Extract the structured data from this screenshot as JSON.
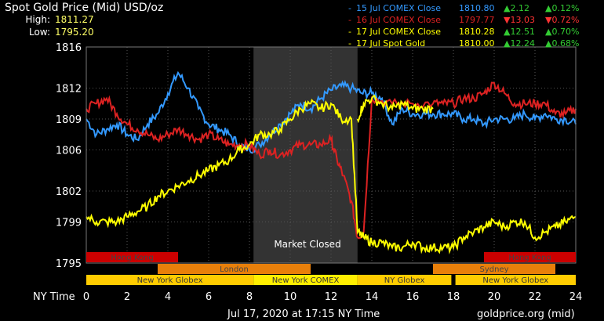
{
  "title": "Spot Gold Price (Mid) USD/oz",
  "stats": [
    {
      "label": "High:",
      "value": "1811.27"
    },
    {
      "label": "Low:",
      "value": "1795.20"
    }
  ],
  "legend": [
    {
      "label": "15 Jul COMEX Close",
      "price": "1810.80",
      "arrow": "▲",
      "change": "2.12",
      "pct_arrow": "▲",
      "pct": "0.12%",
      "color": "#3399ff",
      "change_color": "#33cc33"
    },
    {
      "label": "16 Jul COMEX Close",
      "price": "1797.77",
      "arrow": "▼",
      "change": "13.03",
      "pct_arrow": "▼",
      "pct": "0.72%",
      "color": "#dd2222",
      "change_color": "#ff3333"
    },
    {
      "label": "17 Jul COMEX Close",
      "price": "1810.28",
      "arrow": "▲",
      "change": "12.51",
      "pct_arrow": "▲",
      "pct": "0.70%",
      "color": "#ffff00",
      "change_color": "#33cc33"
    },
    {
      "label": "17 Jul Spot Gold",
      "price": "1810.00",
      "arrow": "▲",
      "change": "12.24",
      "pct_arrow": "▲",
      "pct": "0.68%",
      "color": "#ffff00",
      "change_color": "#33cc33"
    }
  ],
  "x_axis_label": "NY Time",
  "footer": {
    "timestamp": "Jul 17, 2020 at 17:15 NY Time",
    "source": "goldprice.org (mid)"
  },
  "market_closed_label": "Market Closed",
  "sessions": [
    {
      "label": "Hong Kong",
      "start": 0,
      "end": 4.5,
      "row": 0,
      "color": "#cc0000"
    },
    {
      "label": "Hong Kong",
      "start": 19.5,
      "end": 24,
      "row": 0,
      "color": "#cc0000"
    },
    {
      "label": "London",
      "start": 3.5,
      "end": 11,
      "row": 1,
      "color": "#e87f0a"
    },
    {
      "label": "Sydney",
      "start": 17,
      "end": 23,
      "row": 1,
      "color": "#e87f0a"
    },
    {
      "label": "New York Globex",
      "start": 0,
      "end": 8.2,
      "row": 2,
      "color": "#ffcc00"
    },
    {
      "label": "New York COMEX",
      "start": 8.2,
      "end": 13.3,
      "row": 2,
      "color": "#ffee00"
    },
    {
      "label": "NY Globex",
      "start": 13.3,
      "end": 17.9,
      "row": 2,
      "color": "#ffcc00"
    },
    {
      "label": "New York Globex",
      "start": 18.1,
      "end": 24,
      "row": 2,
      "color": "#ffcc00"
    }
  ],
  "chart_data": {
    "type": "line",
    "title": "Spot Gold Price (Mid) USD/oz",
    "xlabel": "NY Time",
    "ylabel": "",
    "xlim": [
      0,
      24
    ],
    "ylim": [
      1795,
      1816
    ],
    "x_ticks": [
      0,
      2,
      4,
      6,
      8,
      10,
      12,
      14,
      16,
      18,
      20,
      22,
      24
    ],
    "x_tick_labels": [
      "0",
      "2",
      "4",
      "6",
      "8",
      "10",
      "12",
      "14",
      "16",
      "18",
      "20",
      "22",
      "24"
    ],
    "y_ticks": [
      1795,
      1799,
      1802,
      1806,
      1809,
      1812,
      1816
    ],
    "y_tick_labels": [
      "1795",
      "1799",
      "1802",
      "1806",
      "1809",
      "1812",
      "1816"
    ],
    "market_closed": [
      8.2,
      13.3
    ],
    "grid": true,
    "series": [
      {
        "name": "15 Jul COMEX Close",
        "color": "#3399ff",
        "x": [
          0,
          0.5,
          1,
          1.5,
          2,
          2.5,
          3,
          3.5,
          4,
          4.5,
          5,
          5.5,
          6,
          6.5,
          7,
          7.5,
          8,
          8.5,
          9,
          9.5,
          10,
          10.5,
          11,
          11.5,
          12,
          12.5,
          13,
          13.5,
          14,
          14.5,
          15,
          15.5,
          16,
          16.5,
          17,
          17.5,
          18,
          18.5,
          19,
          19.5,
          20,
          20.5,
          21,
          21.5,
          22,
          22.5,
          23,
          23.5,
          24
        ],
        "y": [
          1809,
          1807.5,
          1808,
          1808.5,
          1807.5,
          1807,
          1808.5,
          1809.5,
          1811.5,
          1813.5,
          1812,
          1810,
          1808.5,
          1808,
          1807.5,
          1806.5,
          1806,
          1806.5,
          1807.5,
          1808.5,
          1809.5,
          1810.5,
          1810,
          1811,
          1811.8,
          1812.2,
          1812,
          1811.5,
          1811.5,
          1811,
          1808.5,
          1810,
          1809.5,
          1809.5,
          1809.5,
          1809.5,
          1809.5,
          1809,
          1809,
          1808.5,
          1809,
          1809,
          1809,
          1809.5,
          1809,
          1809.5,
          1809,
          1809,
          1808.5
        ]
      },
      {
        "name": "16 Jul COMEX Close",
        "color": "#dd2222",
        "x": [
          0,
          0.5,
          1,
          1.5,
          2,
          2.5,
          3,
          3.5,
          4,
          4.5,
          5,
          5.5,
          6,
          6.5,
          7,
          7.5,
          8,
          8.5,
          9,
          9.5,
          10,
          10.5,
          11,
          11.5,
          12,
          12.3,
          12.6,
          13,
          13.3,
          13.6,
          14,
          15,
          16,
          17,
          17.5,
          18,
          18.5,
          19,
          19.5,
          20,
          20.5,
          21,
          21.5,
          22,
          22.5,
          23,
          23.5,
          24
        ],
        "y": [
          1810,
          1810.5,
          1811,
          1809.5,
          1808.5,
          1808,
          1807.5,
          1807,
          1807.5,
          1808,
          1807.5,
          1807,
          1807.5,
          1807,
          1806.5,
          1806.5,
          1806.5,
          1805.5,
          1806,
          1805.5,
          1806,
          1806.5,
          1806.5,
          1806.5,
          1807,
          1805,
          1803.5,
          1801,
          1797.5,
          1798,
          1811,
          1810.5,
          1810.5,
          1810.5,
          1810.5,
          1810.5,
          1811,
          1811,
          1811.5,
          1812.5,
          1811.5,
          1810.5,
          1810.5,
          1810.5,
          1810.5,
          1809.5,
          1809.5,
          1810
        ]
      },
      {
        "name": "17 Jul COMEX Close",
        "color": "#ffff00",
        "x": [
          0,
          0.5,
          1,
          1.5,
          2,
          2.5,
          3,
          3.5,
          4,
          4.5,
          5,
          5.5,
          6,
          6.5,
          7,
          7.5,
          8,
          8.5,
          9,
          9.5,
          10,
          10.5,
          11,
          11.5,
          12,
          12.5,
          13,
          13.3,
          13.6,
          14,
          14.5,
          15,
          15.5,
          16,
          16.5,
          17,
          17.5,
          18,
          18.5,
          19,
          19.5,
          20,
          20.5,
          21,
          21.5,
          22,
          22.5,
          23,
          23.5,
          24
        ],
        "y": [
          1799.5,
          1799,
          1799,
          1799,
          1799.5,
          1800,
          1800.5,
          1801.5,
          1802,
          1802.5,
          1803,
          1803.5,
          1804,
          1804.5,
          1805,
          1806,
          1806.5,
          1807.5,
          1807.5,
          1808,
          1809,
          1810,
          1810.5,
          1810,
          1810.5,
          1809,
          1809,
          1798,
          1797.5,
          1797,
          1797,
          1796.5,
          1796.5,
          1797,
          1796.5,
          1796.5,
          1796.5,
          1796.5,
          1797.5,
          1798,
          1798.5,
          1799,
          1798.5,
          1799,
          1799,
          1797.5,
          1798,
          1798.5,
          1799,
          1799.5
        ]
      },
      {
        "name": "17 Jul Spot Gold",
        "color": "#ffff00",
        "x": [
          13.3,
          13.6,
          14,
          14.5,
          15,
          15.5,
          16,
          16.5,
          17
        ],
        "y": [
          1809,
          1810.5,
          1811,
          1810.5,
          1810,
          1810.5,
          1810,
          1810,
          1810
        ]
      }
    ]
  }
}
